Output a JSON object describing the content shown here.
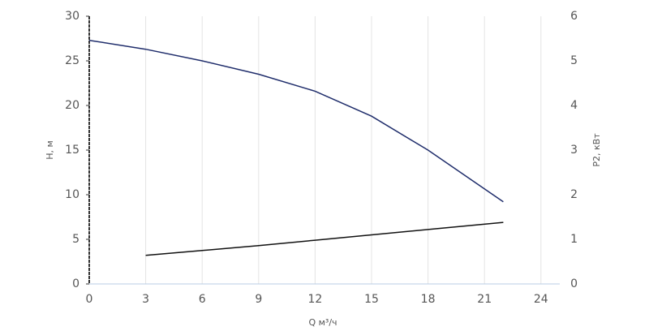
{
  "chart_data": {
    "type": "line",
    "x_label": "Q м³/ч",
    "y_label": "H, м",
    "y2_label": "P2, кВт",
    "xlim": [
      0,
      25
    ],
    "xticks": [
      0,
      3,
      6,
      9,
      12,
      15,
      18,
      21,
      24
    ],
    "ylim": [
      0,
      30
    ],
    "yticks": [
      0,
      5,
      10,
      15,
      20,
      25,
      30
    ],
    "y2lim": [
      0,
      6
    ],
    "y2ticks": [
      0,
      1,
      2,
      3,
      4,
      5,
      6
    ],
    "grid": true,
    "series": [
      {
        "x": [
          0,
          3,
          6,
          9,
          12,
          15,
          18,
          22
        ],
        "values": [
          27.3,
          26.3,
          25.0,
          23.5,
          21.6,
          18.8,
          15.0,
          9.2
        ],
        "color": "#1f2d6b"
      },
      {
        "x": [
          3,
          6,
          9,
          12,
          15,
          18,
          22
        ],
        "values": [
          0.64,
          0.75,
          0.86,
          0.98,
          1.1,
          1.22,
          1.38
        ],
        "color": "#111111",
        "axis": "y2"
      }
    ]
  }
}
